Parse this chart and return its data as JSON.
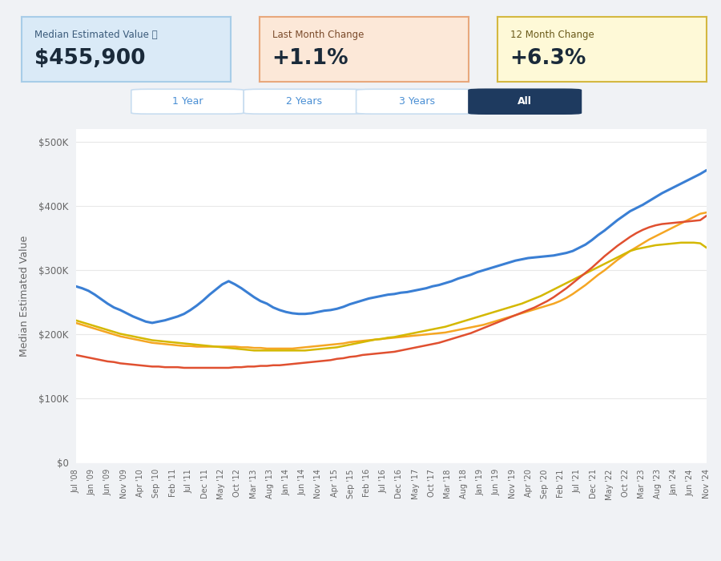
{
  "title_box1_label": "Median Estimated Value ⓘ",
  "title_box1_value": "$455,900",
  "title_box2_label": "Last Month Change",
  "title_box2_value": "+1.1%",
  "title_box3_label": "12 Month Change",
  "title_box3_value": "+6.3%",
  "box1_bg": "#daeaf7",
  "box1_border": "#a8cde8",
  "box2_bg": "#fce8d8",
  "box2_border": "#e8a87c",
  "box3_bg": "#fef9d7",
  "box3_border": "#d4b840",
  "ylabel": "Median Estimated Value",
  "yticks": [
    0,
    100000,
    200000,
    300000,
    400000,
    500000
  ],
  "ytick_labels": [
    "$0",
    "$100K",
    "$200K",
    "$300K",
    "$400K",
    "$500K"
  ],
  "background_color": "#f0f2f5",
  "plot_bg": "#ffffff",
  "grid_color": "#e8e8e8",
  "colors": {
    "New Lenox": "#3a7fd4",
    "Will County": "#f5a623",
    "Illinois": "#d4b800",
    "USA": "#e05030"
  },
  "line_widths": {
    "New Lenox": 2.2,
    "Will County": 1.8,
    "Illinois": 1.8,
    "USA": 1.8
  },
  "buttons": [
    "1 Year",
    "2 Years",
    "3 Years",
    "All"
  ],
  "active_button": "All",
  "button_active_bg": "#1e3a5f",
  "button_active_fg": "#ffffff",
  "button_inactive_fg": "#4a8fd4",
  "new_lenox": [
    275000,
    272000,
    268000,
    262000,
    255000,
    248000,
    242000,
    238000,
    233000,
    228000,
    224000,
    220000,
    218000,
    220000,
    222000,
    225000,
    228000,
    232000,
    238000,
    245000,
    253000,
    262000,
    270000,
    278000,
    283000,
    278000,
    272000,
    265000,
    258000,
    252000,
    248000,
    242000,
    238000,
    235000,
    233000,
    232000,
    232000,
    233000,
    235000,
    237000,
    238000,
    240000,
    243000,
    247000,
    250000,
    253000,
    256000,
    258000,
    260000,
    262000,
    263000,
    265000,
    266000,
    268000,
    270000,
    272000,
    275000,
    277000,
    280000,
    283000,
    287000,
    290000,
    293000,
    297000,
    300000,
    303000,
    306000,
    309000,
    312000,
    315000,
    317000,
    319000,
    320000,
    321000,
    322000,
    323000,
    325000,
    327000,
    330000,
    335000,
    340000,
    347000,
    355000,
    362000,
    370000,
    378000,
    385000,
    392000,
    397000,
    402000,
    408000,
    414000,
    420000,
    425000,
    430000,
    435000,
    440000,
    445000,
    450000,
    455900
  ],
  "will_county": [
    218000,
    215000,
    212000,
    209000,
    206000,
    203000,
    200000,
    197000,
    195000,
    193000,
    191000,
    189000,
    187000,
    186000,
    185000,
    184000,
    183000,
    182000,
    182000,
    181000,
    181000,
    181000,
    181000,
    181000,
    181000,
    181000,
    180000,
    180000,
    179000,
    179000,
    178000,
    178000,
    178000,
    178000,
    178000,
    179000,
    180000,
    181000,
    182000,
    183000,
    184000,
    185000,
    186000,
    188000,
    189000,
    190000,
    191000,
    192000,
    193000,
    194000,
    195000,
    196000,
    197000,
    198000,
    199000,
    200000,
    201000,
    202000,
    203000,
    205000,
    207000,
    209000,
    211000,
    213000,
    215000,
    218000,
    221000,
    224000,
    227000,
    230000,
    233000,
    236000,
    239000,
    242000,
    245000,
    248000,
    252000,
    257000,
    263000,
    270000,
    277000,
    285000,
    293000,
    300000,
    308000,
    316000,
    323000,
    330000,
    336000,
    342000,
    348000,
    353000,
    358000,
    363000,
    368000,
    373000,
    378000,
    383000,
    388000,
    390000
  ],
  "illinois": [
    222000,
    219000,
    216000,
    213000,
    210000,
    207000,
    204000,
    201000,
    199000,
    197000,
    195000,
    193000,
    191000,
    190000,
    189000,
    188000,
    187000,
    186000,
    185000,
    184000,
    183000,
    182000,
    181000,
    180000,
    179000,
    178000,
    177000,
    176000,
    175000,
    175000,
    175000,
    175000,
    175000,
    175000,
    175000,
    175000,
    175000,
    176000,
    177000,
    178000,
    179000,
    180000,
    182000,
    184000,
    186000,
    188000,
    190000,
    192000,
    193000,
    195000,
    196000,
    198000,
    200000,
    202000,
    204000,
    206000,
    208000,
    210000,
    212000,
    215000,
    218000,
    221000,
    224000,
    227000,
    230000,
    233000,
    236000,
    239000,
    242000,
    245000,
    248000,
    252000,
    256000,
    260000,
    265000,
    270000,
    275000,
    280000,
    285000,
    290000,
    295000,
    300000,
    305000,
    310000,
    315000,
    320000,
    325000,
    330000,
    333000,
    335000,
    337000,
    339000,
    340000,
    341000,
    342000,
    343000,
    343000,
    343000,
    342000,
    335000
  ],
  "usa": [
    168000,
    166000,
    164000,
    162000,
    160000,
    158000,
    157000,
    155000,
    154000,
    153000,
    152000,
    151000,
    150000,
    150000,
    149000,
    149000,
    149000,
    148000,
    148000,
    148000,
    148000,
    148000,
    148000,
    148000,
    148000,
    149000,
    149000,
    150000,
    150000,
    151000,
    151000,
    152000,
    152000,
    153000,
    154000,
    155000,
    156000,
    157000,
    158000,
    159000,
    160000,
    162000,
    163000,
    165000,
    166000,
    168000,
    169000,
    170000,
    171000,
    172000,
    173000,
    175000,
    177000,
    179000,
    181000,
    183000,
    185000,
    187000,
    190000,
    193000,
    196000,
    199000,
    202000,
    206000,
    210000,
    214000,
    218000,
    222000,
    226000,
    230000,
    234000,
    238000,
    242000,
    247000,
    252000,
    258000,
    265000,
    272000,
    280000,
    288000,
    296000,
    304000,
    313000,
    322000,
    330000,
    338000,
    345000,
    352000,
    358000,
    363000,
    367000,
    370000,
    372000,
    373000,
    374000,
    375000,
    376000,
    377000,
    378000,
    385000
  ],
  "xtick_labels": [
    "Jul '08",
    "Jan '09",
    "Jun '09",
    "Nov '09",
    "Apr '10",
    "Sep '10",
    "Feb '11",
    "Jul '11",
    "Dec '11",
    "May '12",
    "Oct '12",
    "Mar '13",
    "Aug '13",
    "Jan '14",
    "Jun '14",
    "Nov '14",
    "Apr '15",
    "Sep '15",
    "Feb '16",
    "Jul '16",
    "Dec '16",
    "May '17",
    "Oct '17",
    "Mar '18",
    "Aug '18",
    "Jan '19",
    "Jun '19",
    "Nov '19",
    "Apr '20",
    "Sep '20",
    "Feb '21",
    "Jul '21",
    "Dec '21",
    "May '22",
    "Oct '22",
    "Mar '23",
    "Aug '23",
    "Jan '24",
    "Jun '24",
    "Nov '24"
  ]
}
